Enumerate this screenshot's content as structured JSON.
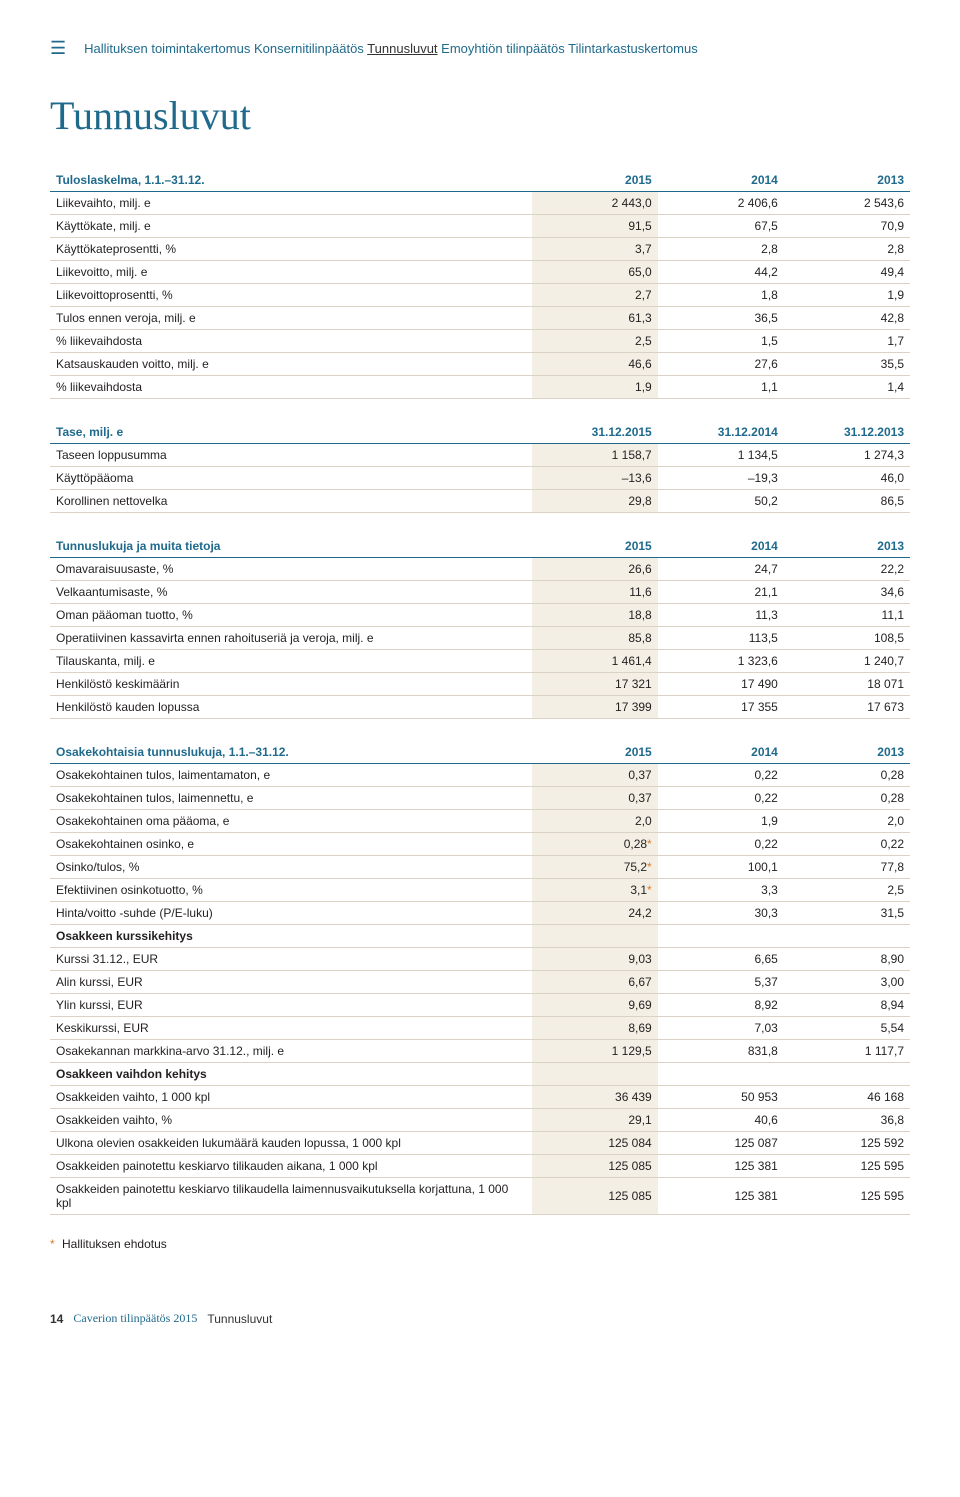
{
  "nav": {
    "items": [
      "Hallituksen toimintakertomus",
      "Konsernitilinpäätös",
      "Tunnusluvut",
      "Emoyhtiön tilinpäätös",
      "Tilintarkastuskertomus"
    ],
    "active_index": 2
  },
  "page_title": "Tunnusluvut",
  "colors": {
    "brand": "#1f6a8c",
    "highlight_bg": "#f3efe5",
    "row_border": "#d9d2c5",
    "asterisk": "#d97a2b",
    "text": "#231f20"
  },
  "tables": {
    "tuloslaskelma": {
      "header": [
        "Tuloslaskelma, 1.1.–31.12.",
        "2015",
        "2014",
        "2013"
      ],
      "rows": [
        {
          "label": "Liikevaihto, milj. e",
          "v": [
            "2 443,0",
            "2 406,6",
            "2 543,6"
          ]
        },
        {
          "label": "Käyttökate, milj. e",
          "v": [
            "91,5",
            "67,5",
            "70,9"
          ]
        },
        {
          "label": "Käyttökateprosentti, %",
          "v": [
            "3,7",
            "2,8",
            "2,8"
          ]
        },
        {
          "label": "Liikevoitto, milj. e",
          "v": [
            "65,0",
            "44,2",
            "49,4"
          ]
        },
        {
          "label": "Liikevoittoprosentti, %",
          "v": [
            "2,7",
            "1,8",
            "1,9"
          ]
        },
        {
          "label": "Tulos ennen veroja, milj. e",
          "v": [
            "61,3",
            "36,5",
            "42,8"
          ]
        },
        {
          "label": "% liikevaihdosta",
          "v": [
            "2,5",
            "1,5",
            "1,7"
          ]
        },
        {
          "label": "Katsauskauden voitto, milj. e",
          "v": [
            "46,6",
            "27,6",
            "35,5"
          ]
        },
        {
          "label": "% liikevaihdosta",
          "v": [
            "1,9",
            "1,1",
            "1,4"
          ]
        }
      ]
    },
    "tase": {
      "header": [
        "Tase, milj. e",
        "31.12.2015",
        "31.12.2014",
        "31.12.2013"
      ],
      "rows": [
        {
          "label": "Taseen loppusumma",
          "v": [
            "1 158,7",
            "1 134,5",
            "1 274,3"
          ]
        },
        {
          "label": "Käyttöpääoma",
          "v": [
            "–13,6",
            "–19,3",
            "46,0"
          ]
        },
        {
          "label": "Korollinen nettovelka",
          "v": [
            "29,8",
            "50,2",
            "86,5"
          ]
        }
      ]
    },
    "muita": {
      "header": [
        "Tunnuslukuja ja muita tietoja",
        "2015",
        "2014",
        "2013"
      ],
      "rows": [
        {
          "label": "Omavaraisuusaste, %",
          "v": [
            "26,6",
            "24,7",
            "22,2"
          ]
        },
        {
          "label": "Velkaantumisaste, %",
          "v": [
            "11,6",
            "21,1",
            "34,6"
          ]
        },
        {
          "label": "Oman pääoman tuotto, %",
          "v": [
            "18,8",
            "11,3",
            "11,1"
          ]
        },
        {
          "label": "Operatiivinen kassavirta ennen rahoituseriä ja veroja, milj. e",
          "v": [
            "85,8",
            "113,5",
            "108,5"
          ]
        },
        {
          "label": "Tilauskanta, milj. e",
          "v": [
            "1 461,4",
            "1 323,6",
            "1 240,7"
          ]
        },
        {
          "label": "Henkilöstö keskimäärin",
          "v": [
            "17 321",
            "17 490",
            "18 071"
          ]
        },
        {
          "label": "Henkilöstö kauden lopussa",
          "v": [
            "17 399",
            "17 355",
            "17 673"
          ]
        }
      ]
    },
    "osakekohtaisia": {
      "header": [
        "Osakekohtaisia tunnuslukuja, 1.1.–31.12.",
        "2015",
        "2014",
        "2013"
      ],
      "rows": [
        {
          "label": "Osakekohtainen tulos, laimentamaton, e",
          "v": [
            "0,37",
            "0,22",
            "0,28"
          ]
        },
        {
          "label": "Osakekohtainen tulos, laimennettu, e",
          "v": [
            "0,37",
            "0,22",
            "0,28"
          ]
        },
        {
          "label": "Osakekohtainen oma pääoma, e",
          "v": [
            "2,0",
            "1,9",
            "2,0"
          ]
        },
        {
          "label": "Osakekohtainen osinko, e",
          "v": [
            "0,28",
            "0,22",
            "0,22"
          ],
          "asterisk": true
        },
        {
          "label": "Osinko/tulos, %",
          "v": [
            "75,2",
            "100,1",
            "77,8"
          ],
          "asterisk": true
        },
        {
          "label": "Efektiivinen osinkotuotto, %",
          "v": [
            "3,1",
            "3,3",
            "2,5"
          ],
          "asterisk": true
        },
        {
          "label": "Hinta/voitto -suhde (P/E-luku)",
          "v": [
            "24,2",
            "30,3",
            "31,5"
          ]
        },
        {
          "label": "Osakkeen kurssikehitys",
          "v": [
            "",
            "",
            ""
          ],
          "bold": true
        },
        {
          "label": "Kurssi 31.12., EUR",
          "v": [
            "9,03",
            "6,65",
            "8,90"
          ]
        },
        {
          "label": "Alin kurssi, EUR",
          "v": [
            "6,67",
            "5,37",
            "3,00"
          ]
        },
        {
          "label": "Ylin kurssi, EUR",
          "v": [
            "9,69",
            "8,92",
            "8,94"
          ]
        },
        {
          "label": "Keskikurssi, EUR",
          "v": [
            "8,69",
            "7,03",
            "5,54"
          ]
        },
        {
          "label": "Osakekannan markkina-arvo 31.12., milj. e",
          "v": [
            "1 129,5",
            "831,8",
            "1 117,7"
          ]
        },
        {
          "label": "Osakkeen vaihdon kehitys",
          "v": [
            "",
            "",
            ""
          ],
          "bold": true
        },
        {
          "label": "Osakkeiden vaihto, 1 000 kpl",
          "v": [
            "36 439",
            "50 953",
            "46 168"
          ]
        },
        {
          "label": "Osakkeiden vaihto, %",
          "v": [
            "29,1",
            "40,6",
            "36,8"
          ]
        },
        {
          "label": "Ulkona olevien osakkeiden lukumäärä kauden lopussa, 1 000 kpl",
          "v": [
            "125 084",
            "125 087",
            "125 592"
          ]
        },
        {
          "label": "Osakkeiden painotettu keskiarvo tilikauden aikana, 1 000 kpl",
          "v": [
            "125 085",
            "125 381",
            "125 595"
          ]
        },
        {
          "label": "Osakkeiden painotettu keskiarvo tilikaudella laimennusvaikutuksella korjattuna, 1 000 kpl",
          "v": [
            "125 085",
            "125 381",
            "125 595"
          ]
        }
      ]
    }
  },
  "footnote": "Hallituksen ehdotus",
  "footer": {
    "page_number": "14",
    "doc_title": "Caverion tilinpäätös 2015",
    "section": "Tunnusluvut"
  }
}
